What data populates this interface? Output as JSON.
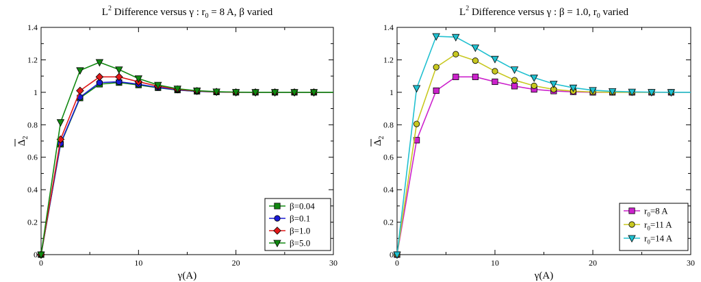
{
  "chart_data": [
    {
      "type": "line",
      "title": {
        "prefix": "L",
        "sup": "2",
        "rest": " Difference versus γ : r",
        "sub": "0",
        "tail": " = 8 A, β varied"
      },
      "xlabel": "γ(A)",
      "ylabel": {
        "main": "Δ",
        "sub": "2"
      },
      "xlim": [
        0,
        30
      ],
      "ylim": [
        0,
        1.4
      ],
      "x_ticks": [
        0,
        10,
        20,
        30
      ],
      "y_ticks": [
        "0",
        "0.2",
        "0.4",
        "0.6",
        "0.8",
        "1",
        "1.2",
        "1.4"
      ],
      "legend_position": "bottom-right",
      "x": [
        0,
        2,
        4,
        6,
        8,
        10,
        12,
        14,
        16,
        18,
        20,
        22,
        24,
        26,
        28,
        30
      ],
      "series": [
        {
          "name": "β=0.04",
          "label_main": "β=0.04",
          "label_sub": "",
          "label_tail": "",
          "color": "#118811",
          "marker": "square",
          "values": [
            0,
            0.68,
            0.965,
            1.05,
            1.06,
            1.045,
            1.028,
            1.014,
            1.006,
            1.002,
            1.0,
            1.0,
            1.0,
            1.0,
            1.0,
            1.0
          ]
        },
        {
          "name": "β=0.1",
          "label_main": "β=0.1",
          "label_sub": "",
          "label_tail": "",
          "color": "#1a1ad6",
          "marker": "circle",
          "values": [
            0,
            0.685,
            0.97,
            1.06,
            1.065,
            1.05,
            1.03,
            1.015,
            1.006,
            1.002,
            1.0,
            1.0,
            1.0,
            1.0,
            1.0,
            1.0
          ]
        },
        {
          "name": "β=1.0",
          "label_main": "β=1.0",
          "label_sub": "",
          "label_tail": "",
          "color": "#e01818",
          "marker": "diamond",
          "values": [
            0,
            0.71,
            1.01,
            1.095,
            1.095,
            1.065,
            1.038,
            1.018,
            1.008,
            1.003,
            1.0,
            1.0,
            1.0,
            1.0,
            1.0,
            1.0
          ]
        },
        {
          "name": "β=5.0",
          "label_main": "β=5.0",
          "label_sub": "",
          "label_tail": "",
          "color": "#118811",
          "marker": "triangle-down",
          "values": [
            0,
            0.815,
            1.135,
            1.185,
            1.14,
            1.085,
            1.045,
            1.022,
            1.01,
            1.004,
            1.001,
            1.0,
            1.0,
            1.0,
            1.0,
            1.0
          ]
        }
      ]
    },
    {
      "type": "line",
      "title": {
        "prefix": "L",
        "sup": "2",
        "rest": " Difference versus γ : β = 1.0, r",
        "sub": "0",
        "tail": " varied"
      },
      "xlabel": "γ(A)",
      "ylabel": {
        "main": "Δ",
        "sub": "2"
      },
      "xlim": [
        0,
        30
      ],
      "ylim": [
        0,
        1.4
      ],
      "x_ticks": [
        0,
        10,
        20,
        30
      ],
      "y_ticks": [
        "0",
        "0.2",
        "0.4",
        "0.6",
        "0.8",
        "1",
        "1.2",
        "1.4"
      ],
      "legend_position": "bottom-right",
      "x": [
        0,
        2,
        4,
        6,
        8,
        10,
        12,
        14,
        16,
        18,
        20,
        22,
        24,
        26,
        28,
        30
      ],
      "series": [
        {
          "name": "r0=8 A",
          "label_main": "r",
          "label_sub": "0",
          "label_tail": "=8 A",
          "color": "#cc22cc",
          "marker": "square",
          "values": [
            0,
            0.705,
            1.01,
            1.095,
            1.095,
            1.065,
            1.038,
            1.018,
            1.008,
            1.003,
            1.0,
            1.0,
            1.0,
            1.0,
            1.0,
            1.0
          ]
        },
        {
          "name": "r0=11 A",
          "label_main": "r",
          "label_sub": "0",
          "label_tail": "=11 A",
          "color": "#c8c820",
          "marker": "circle",
          "values": [
            0,
            0.805,
            1.155,
            1.235,
            1.195,
            1.13,
            1.075,
            1.04,
            1.018,
            1.007,
            1.002,
            1.0,
            1.0,
            1.0,
            1.0,
            1.0
          ]
        },
        {
          "name": "r0=14 A",
          "label_main": "r",
          "label_sub": "0",
          "label_tail": "=14 A",
          "color": "#20c0d0",
          "marker": "triangle-down",
          "values": [
            0,
            1.025,
            1.345,
            1.34,
            1.275,
            1.205,
            1.14,
            1.09,
            1.052,
            1.028,
            1.013,
            1.006,
            1.003,
            1.001,
            1.0,
            1.0
          ]
        }
      ]
    }
  ]
}
